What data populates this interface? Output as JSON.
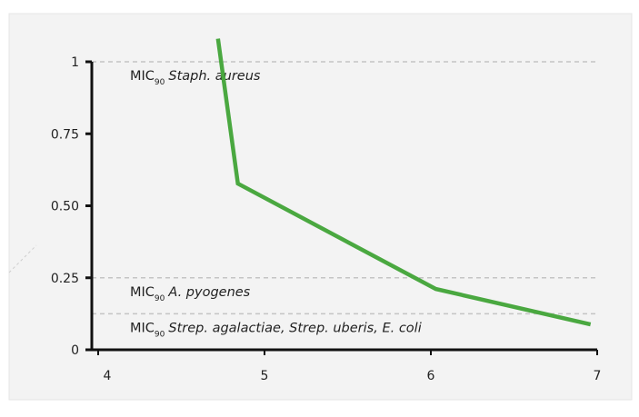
{
  "chart_data": {
    "type": "line",
    "x": [
      4.72,
      4.84,
      6.03,
      6.96
    ],
    "series": [
      {
        "color": "#4aa840",
        "values": [
          1.08,
          0.577,
          0.211,
          0.088
        ]
      }
    ],
    "xlim": [
      4,
      7
    ],
    "xticks": [
      4,
      5,
      6,
      7
    ],
    "ylim": [
      0,
      1
    ],
    "yticks": [
      0,
      0.25,
      {
        "value": 0.5,
        "label": "0.50"
      },
      0.75,
      1
    ],
    "reference_lines": [
      {
        "value": 1,
        "text": "MIC",
        "subscript": "90",
        "organism": "Staph. aureus"
      },
      {
        "value": 0.25,
        "text": "MIC",
        "subscript": "90",
        "organism": "A. pyogenes"
      },
      {
        "value": 0.125,
        "text": "MIC",
        "subscript": "90",
        "organism": "Strep. agalactiae, Strep. uberis, E. coli"
      }
    ]
  }
}
